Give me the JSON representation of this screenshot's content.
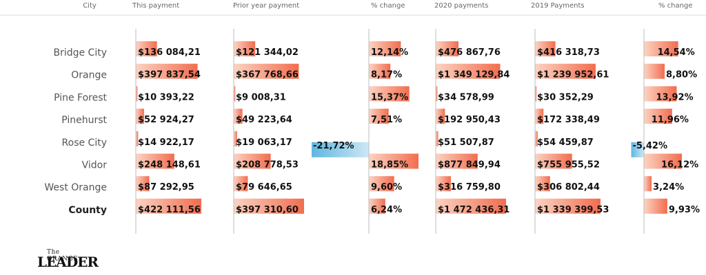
{
  "chart_data": {
    "type": "table",
    "columns": [
      "City",
      "This payment",
      "Prior year payment",
      "% change",
      "2020 payments",
      "2019 Payments",
      "% change"
    ],
    "rows": [
      {
        "city": "Bridge City",
        "this_payment": "$136 084,21",
        "prior_payment": "$121 344,02",
        "change1": "12,14%",
        "pay2020": "$476 867,76",
        "pay2019": "$416 318,73",
        "change2": "14,54%"
      },
      {
        "city": "Orange",
        "this_payment": "$397 837,54",
        "prior_payment": "$367 768,66",
        "change1": "8,17%",
        "pay2020": "$1 349 129,84",
        "pay2019": "$1 239 952,61",
        "change2": "8,80%"
      },
      {
        "city": "Pine Forest",
        "this_payment": "$10 393,22",
        "prior_payment": "$9 008,31",
        "change1": "15,37%",
        "pay2020": "$34 578,99",
        "pay2019": "$30 352,29",
        "change2": "13,92%"
      },
      {
        "city": "Pinehurst",
        "this_payment": "$52 924,27",
        "prior_payment": "$49 223,64",
        "change1": "7,51%",
        "pay2020": "$192 950,43",
        "pay2019": "$172 338,49",
        "change2": "11,96%"
      },
      {
        "city": "Rose City",
        "this_payment": "$14 922,17",
        "prior_payment": "$19 063,17",
        "change1": "-21,72%",
        "pay2020": "$51 507,87",
        "pay2019": "$54 459,87",
        "change2": "-5,42%"
      },
      {
        "city": "Vidor",
        "this_payment": "$248 148,61",
        "prior_payment": "$208 778,53",
        "change1": "18,85%",
        "pay2020": "$877 849,94",
        "pay2019": "$755 955,52",
        "change2": "16,12%"
      },
      {
        "city": "West Orange",
        "this_payment": "$87 292,95",
        "prior_payment": "$79 646,65",
        "change1": "9,60%",
        "pay2020": "$316 759,80",
        "pay2019": "$306 802,44",
        "change2": "3,24%"
      },
      {
        "city": "County",
        "this_payment": "$422 111,56",
        "prior_payment": "$397 310,60",
        "change1": "6,24%",
        "pay2020": "$1 472 436,31",
        "pay2019": "$1 339 399,53",
        "change2": "9,93%",
        "is_total": true
      }
    ],
    "numeric": {
      "this_payment": [
        136084.21,
        397837.54,
        10393.22,
        52924.27,
        14922.17,
        248148.61,
        87292.95,
        422111.56
      ],
      "prior_payment": [
        121344.02,
        367768.66,
        9008.31,
        49223.64,
        19063.17,
        208778.53,
        79646.65,
        397310.6
      ],
      "change1": [
        12.14,
        8.17,
        15.37,
        7.51,
        -21.72,
        18.85,
        9.6,
        6.24
      ],
      "pay2020": [
        476867.76,
        1349129.84,
        34578.99,
        192950.43,
        51507.87,
        877849.94,
        316759.8,
        1472436.31
      ],
      "pay2019": [
        416318.73,
        1239952.61,
        30352.29,
        172338.49,
        54459.87,
        755955.52,
        306802.44,
        1339399.53
      ],
      "change2": [
        14.54,
        8.8,
        13.92,
        11.96,
        -5.42,
        16.12,
        3.24,
        9.93
      ]
    },
    "colors": {
      "positive_dark": "#f26d4f",
      "positive_light": "#fcd3c2",
      "negative_dark": "#5fb6e0",
      "negative_light": "#cce8f5",
      "axis": "#bdbdbd"
    }
  },
  "logo": {
    "small": "The ORANGE",
    "big": "LEADER"
  }
}
